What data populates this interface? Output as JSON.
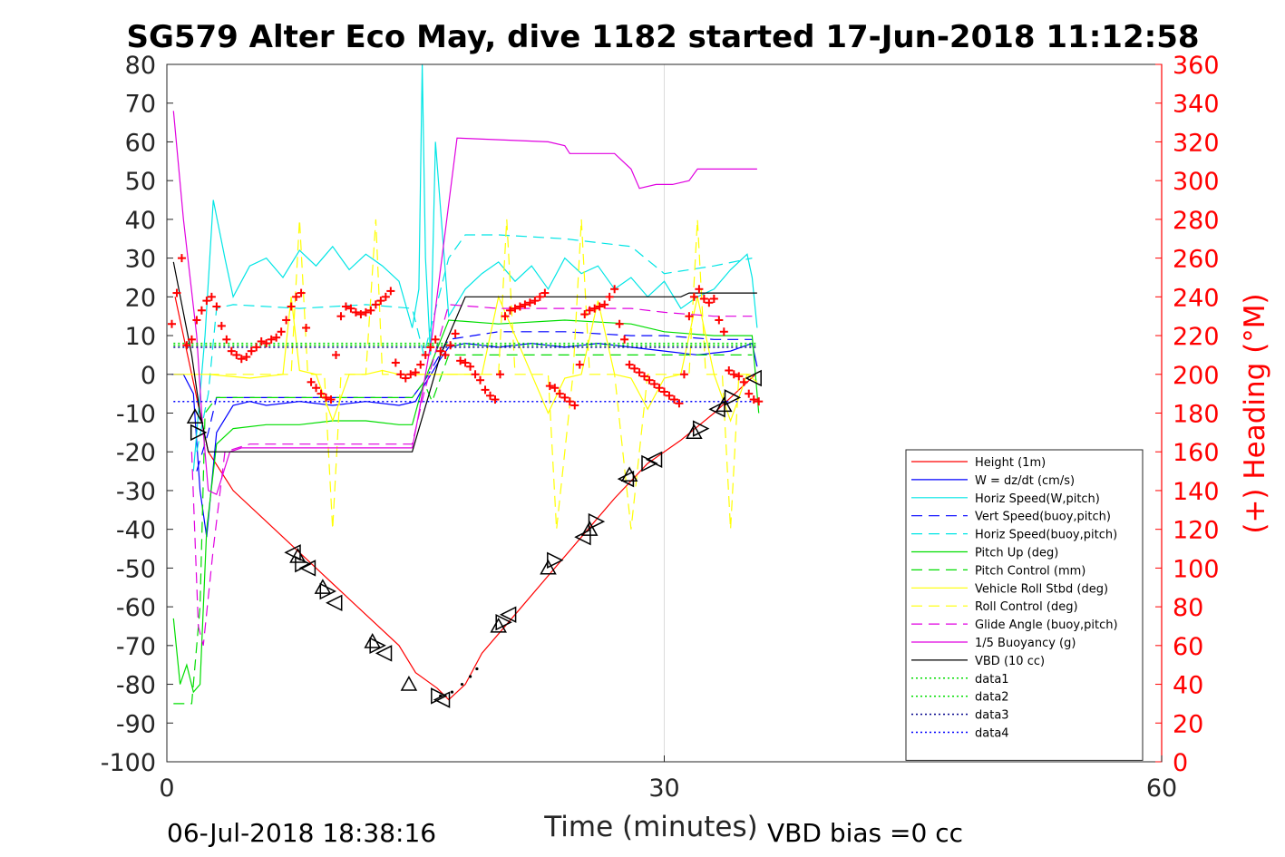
{
  "chart_data": {
    "type": "line",
    "title": "SG579 Alter Eco May, dive 1182 started 17-Jun-2018 11:12:58",
    "xlabel": "Time (minutes)",
    "ylabel": "",
    "y2label": "(+) Heading (°M)",
    "xlim": [
      0,
      60
    ],
    "ylim": [
      -100,
      80
    ],
    "y2lim": [
      0,
      360
    ],
    "x_ticks": [
      "0",
      "30",
      "60"
    ],
    "y_ticks": [
      "80",
      "70",
      "60",
      "50",
      "40",
      "30",
      "20",
      "10",
      "0",
      "-10",
      "-20",
      "-30",
      "-40",
      "-50",
      "-60",
      "-70",
      "-80",
      "-90",
      "-100"
    ],
    "y2_ticks": [
      "360",
      "340",
      "320",
      "300",
      "280",
      "260",
      "240",
      "220",
      "200",
      "180",
      "160",
      "140",
      "120",
      "100",
      "80",
      "60",
      "40",
      "20",
      "0"
    ],
    "grid": "x-major",
    "legend_position": "bottom-right",
    "footer_left": "06-Jul-2018 18:38:16",
    "footer_right": "VBD bias =0 cc",
    "colors": {
      "red": "#ff0000",
      "blue": "#0000ff",
      "cyan": "#00e5e5",
      "green": "#00dd00",
      "yellow": "#ffff00",
      "magenta": "#e000e0",
      "black": "#000000",
      "darkblue": "#00008b"
    },
    "series": [
      {
        "name": "Height (1m)",
        "color": "#ff0000",
        "style": "solid",
        "x": [
          0.5,
          1.5,
          2.5,
          4,
          6,
          8,
          10,
          12,
          14,
          15,
          16.3,
          17,
          18,
          19,
          21,
          23,
          25,
          27,
          29,
          31,
          33,
          34.5,
          35.5
        ],
        "y": [
          20,
          0,
          -20,
          -30,
          -38,
          -46,
          -54,
          -62,
          -70,
          -77,
          -81,
          -84,
          -80,
          -72,
          -62,
          -52,
          -42,
          -32,
          -23,
          -17,
          -10,
          -4,
          0
        ]
      },
      {
        "name": "W = dz/dt (cm/s)",
        "color": "#0000ff",
        "style": "solid",
        "x": [
          0.3,
          1,
          1.6,
          2.0,
          2.4,
          3,
          4,
          5,
          6,
          8,
          10,
          12,
          14,
          15,
          15.5,
          16.5,
          17,
          18,
          20,
          22,
          24,
          26,
          28,
          30,
          32,
          34,
          35.3,
          35.6
        ],
        "y": [
          0,
          0,
          -5,
          -30,
          -42,
          -15,
          -8,
          -7,
          -8,
          -7,
          -8,
          -7,
          -8,
          -7,
          -3,
          4,
          7,
          8,
          7,
          8,
          7,
          8,
          7,
          6,
          5,
          6,
          8,
          2
        ]
      },
      {
        "name": "Horiz Speed(W,pitch)",
        "color": "#00e5e5",
        "style": "solid",
        "x": [
          1.6,
          2.3,
          2.8,
          3.5,
          4,
          5,
          6,
          7,
          8,
          9,
          10,
          11,
          12,
          13,
          14,
          14.8,
          15.2,
          15.4,
          15.6,
          15.9,
          16.2,
          17,
          18,
          19,
          20,
          21,
          22,
          23,
          24,
          25,
          26,
          27,
          28,
          29,
          30,
          31,
          32,
          33,
          34,
          35,
          35.3,
          35.6
        ],
        "y": [
          -25,
          10,
          45,
          30,
          20,
          28,
          30,
          25,
          32,
          28,
          33,
          27,
          31,
          28,
          24,
          12,
          22,
          80,
          30,
          5,
          60,
          15,
          22,
          26,
          29,
          24,
          28,
          22,
          30,
          26,
          28,
          22,
          25,
          20,
          24,
          17,
          20,
          22,
          27,
          31,
          25,
          12
        ]
      },
      {
        "name": "Vert Speed(buoy,pitch)",
        "color": "#0000ff",
        "style": "dashed",
        "x": [
          1.8,
          2.5,
          3,
          4,
          8,
          12,
          14.8,
          15.5,
          17,
          20,
          24,
          28,
          30,
          33,
          35.3
        ],
        "y": [
          -25,
          -15,
          -6,
          -6,
          -6,
          -6,
          -6,
          -2,
          9,
          11,
          11,
          10,
          10,
          9,
          9
        ]
      },
      {
        "name": "Horiz Speed(buoy,pitch)",
        "color": "#00e5e5",
        "style": "dashed",
        "x": [
          1.8,
          2.5,
          3,
          4,
          8,
          12,
          14.8,
          15.5,
          17,
          18,
          20,
          24,
          28,
          30,
          33,
          35.3
        ],
        "y": [
          -20,
          -5,
          17,
          18,
          17,
          18,
          17,
          5,
          30,
          36,
          36,
          35,
          33,
          26,
          28,
          30
        ]
      },
      {
        "name": "Pitch Up (deg)",
        "color": "#00dd00",
        "style": "solid",
        "x": [
          0.4,
          0.8,
          1.2,
          1.6,
          2.0,
          2.4,
          3,
          4,
          6,
          8,
          10,
          12,
          14,
          14.8,
          15.5,
          17,
          20,
          24,
          28,
          30,
          33,
          35.3,
          35.7
        ],
        "y": [
          -63,
          -80,
          -75,
          -82,
          -80,
          -40,
          -18,
          -14,
          -13,
          -13,
          -12,
          -12,
          -13,
          -13,
          -2,
          14,
          13,
          14,
          13,
          11,
          10,
          10,
          -10
        ]
      },
      {
        "name": "Pitch Control (mm)",
        "color": "#00dd00",
        "style": "dashed",
        "x": [
          0.4,
          1.5,
          2.0,
          2.3,
          3,
          5,
          8,
          12,
          14.8,
          15.5,
          16,
          17,
          20,
          25,
          30,
          33,
          35.3
        ],
        "y": [
          -85,
          -85,
          -60,
          -10,
          -6,
          -6,
          -6,
          -6,
          -6,
          -2,
          -7,
          5,
          5,
          5,
          5,
          5,
          5
        ]
      },
      {
        "name": "Vehicle Roll Stbd (deg)",
        "color": "#ffff00",
        "style": "solid",
        "x": [
          0.4,
          2.5,
          5,
          7,
          7.5,
          8,
          9,
          10,
          11,
          12,
          13,
          14,
          15,
          16,
          17,
          19,
          20,
          22,
          23,
          24,
          25,
          26,
          27,
          28,
          29,
          30,
          31,
          32,
          33,
          34,
          35,
          35.6
        ],
        "y": [
          0,
          0,
          -1,
          0,
          20,
          1,
          0,
          -12,
          0,
          0,
          1,
          0,
          0,
          0,
          0,
          0,
          20,
          0,
          -10,
          -1,
          0,
          19,
          0,
          -1,
          -9,
          -1,
          0,
          20,
          0,
          -12,
          0,
          -2
        ]
      },
      {
        "name": "Roll Control (deg)",
        "color": "#ffff00",
        "style": "dashed",
        "x": [
          2.5,
          7.5,
          8,
          8.5,
          9.5,
          10,
          10.5,
          12,
          12.6,
          13,
          14,
          20,
          20.5,
          21,
          22,
          23,
          23.5,
          24.5,
          25,
          25.5,
          26,
          27,
          28,
          29,
          30,
          31.5,
          32,
          32.5,
          33.5,
          34,
          34.5,
          35.6
        ],
        "y": [
          0,
          0,
          40,
          0,
          0,
          -40,
          0,
          0,
          40,
          0,
          0,
          0,
          40,
          0,
          0,
          0,
          -40,
          0,
          40,
          0,
          0,
          0,
          -40,
          0,
          0,
          0,
          40,
          0,
          0,
          -40,
          0,
          0
        ]
      },
      {
        "name": "Glide Angle (buoy,pitch)",
        "color": "#e000e0",
        "style": "dashed",
        "x": [
          1.5,
          1.9,
          2.2,
          2.8,
          3.5,
          5,
          8,
          12,
          14.8,
          15.5,
          17,
          20,
          24,
          28,
          30,
          33,
          35.3
        ],
        "y": [
          -20,
          -65,
          -70,
          -45,
          -20,
          -18,
          -18,
          -18,
          -18,
          -5,
          18,
          17,
          17,
          17,
          16,
          15,
          15
        ]
      },
      {
        "name": "1/5 Buoyancy (g)",
        "color": "#e000e0",
        "style": "solid",
        "x": [
          0.4,
          1,
          1.8,
          2.1,
          2.5,
          3,
          3.8,
          4.5,
          14.8,
          15.2,
          16,
          17.5,
          23,
          24,
          24.3,
          27,
          28,
          28.5,
          29.5,
          30.5,
          31.5,
          32,
          34.5,
          35.6
        ],
        "y": [
          68,
          40,
          10,
          -10,
          -30,
          -31,
          -20,
          -19,
          -19,
          -10,
          10,
          61,
          60,
          59,
          57,
          57,
          53,
          48,
          49,
          49,
          50,
          53,
          53,
          53
        ]
      },
      {
        "name": "VBD (10 cc)",
        "color": "#000000",
        "style": "solid",
        "x": [
          0.4,
          1.5,
          2.0,
          2.5,
          14.8,
          16.5,
          18,
          28,
          31,
          31.5,
          35.6
        ],
        "y": [
          29,
          5,
          -10,
          -20,
          -20,
          5,
          20,
          20,
          20,
          21,
          21
        ]
      },
      {
        "name": "data1",
        "color": "#00dd00",
        "style": "dotted",
        "x": [
          0.4,
          35.6
        ],
        "y": [
          8,
          8
        ]
      },
      {
        "name": "data2",
        "color": "#00dd00",
        "style": "dotted",
        "x": [
          0.4,
          35.6
        ],
        "y": [
          7.5,
          7.5
        ]
      },
      {
        "name": "data3",
        "color": "#00008b",
        "style": "dotted",
        "x": [
          0.4,
          35.6
        ],
        "y": [
          7,
          7
        ]
      },
      {
        "name": "data4",
        "color": "#0000ff",
        "style": "dotted",
        "x": [
          0.4,
          35.6
        ],
        "y": [
          -7,
          -7
        ]
      }
    ],
    "heading_markers": {
      "color": "#ff0000",
      "marker": "+",
      "x": [
        0.3,
        0.6,
        0.9,
        1.2,
        1.5,
        1.8,
        2.1,
        2.4,
        2.7,
        3.0,
        3.3,
        3.6,
        3.9,
        4.2,
        4.5,
        4.8,
        5.1,
        5.4,
        5.7,
        6.0,
        6.3,
        6.6,
        6.9,
        7.2,
        7.5,
        7.8,
        8.1,
        8.4,
        8.7,
        9.0,
        9.3,
        9.6,
        9.9,
        10.2,
        10.5,
        10.8,
        11.1,
        11.4,
        11.7,
        12.0,
        12.3,
        12.6,
        12.9,
        13.2,
        13.5,
        13.8,
        14.1,
        14.4,
        14.7,
        15.0,
        15.3,
        15.6,
        15.9,
        16.2,
        16.5,
        16.8,
        17.1,
        17.4,
        17.7,
        18.0,
        18.3,
        18.6,
        18.9,
        19.2,
        19.5,
        19.8,
        20.1,
        20.4,
        20.7,
        21.0,
        21.3,
        21.6,
        21.9,
        22.2,
        22.5,
        22.8,
        23.1,
        23.4,
        23.7,
        24.0,
        24.3,
        24.6,
        24.9,
        25.2,
        25.5,
        25.8,
        26.1,
        26.4,
        26.7,
        27.0,
        27.3,
        27.6,
        27.9,
        28.2,
        28.5,
        28.8,
        29.1,
        29.4,
        29.7,
        30.0,
        30.3,
        30.6,
        30.9,
        31.2,
        31.5,
        31.8,
        32.1,
        32.4,
        32.7,
        33.0,
        33.3,
        33.6,
        33.9,
        34.2,
        34.5,
        34.8,
        35.1,
        35.4,
        35.7
      ],
      "y": [
        226,
        242,
        260,
        215,
        218,
        228,
        233,
        238,
        240,
        235,
        225,
        218,
        212,
        210,
        208,
        209,
        212,
        214,
        217,
        216,
        218,
        219,
        222,
        228,
        235,
        240,
        242,
        224,
        196,
        193,
        190,
        188,
        187,
        210,
        230,
        235,
        234,
        232,
        231,
        232,
        233,
        236,
        238,
        240,
        243,
        206,
        200,
        198,
        200,
        201,
        205,
        210,
        214,
        218,
        212,
        210,
        215,
        221,
        207,
        206,
        204,
        200,
        197,
        192,
        189,
        187,
        200,
        230,
        233,
        234,
        235,
        236,
        237,
        238,
        240,
        242,
        194,
        193,
        190,
        188,
        186,
        184,
        205,
        231,
        233,
        234,
        235,
        236,
        240,
        244,
        226,
        218,
        205,
        203,
        201,
        199,
        197,
        195,
        193,
        191,
        189,
        187,
        185,
        200,
        230,
        240,
        244,
        239,
        237,
        239,
        228,
        222,
        202,
        200,
        199,
        196,
        190,
        187,
        186
      ]
    },
    "triangle_markers": {
      "color": "#000000",
      "marker": "triangle",
      "points": [
        [
          1.7,
          -11
        ],
        [
          1.9,
          -15
        ],
        [
          7.6,
          -46
        ],
        [
          7.9,
          -47
        ],
        [
          8.2,
          -49
        ],
        [
          8.5,
          -50
        ],
        [
          9.4,
          -55
        ],
        [
          9.7,
          -56
        ],
        [
          10.1,
          -59
        ],
        [
          12.4,
          -69
        ],
        [
          12.7,
          -70
        ],
        [
          13.1,
          -72
        ],
        [
          14.6,
          -80
        ],
        [
          16.4,
          -83
        ],
        [
          16.6,
          -84
        ],
        [
          20.0,
          -65
        ],
        [
          20.3,
          -64
        ],
        [
          20.6,
          -62
        ],
        [
          23.0,
          -50
        ],
        [
          23.4,
          -48
        ],
        [
          25.1,
          -42
        ],
        [
          25.5,
          -40
        ],
        [
          25.9,
          -38
        ],
        [
          27.7,
          -27
        ],
        [
          27.9,
          -26
        ],
        [
          29.1,
          -23
        ],
        [
          29.4,
          -22
        ],
        [
          31.8,
          -15
        ],
        [
          32.2,
          -14
        ],
        [
          33.2,
          -9
        ],
        [
          33.6,
          -8
        ],
        [
          34.1,
          -6
        ],
        [
          35.4,
          -1
        ]
      ]
    },
    "dotted_segment": {
      "color": "#000000",
      "x": [
        16.5,
        17.2,
        17.8,
        18.3,
        18.7
      ],
      "y": [
        -83,
        -82,
        -80,
        -78,
        -76
      ]
    }
  }
}
